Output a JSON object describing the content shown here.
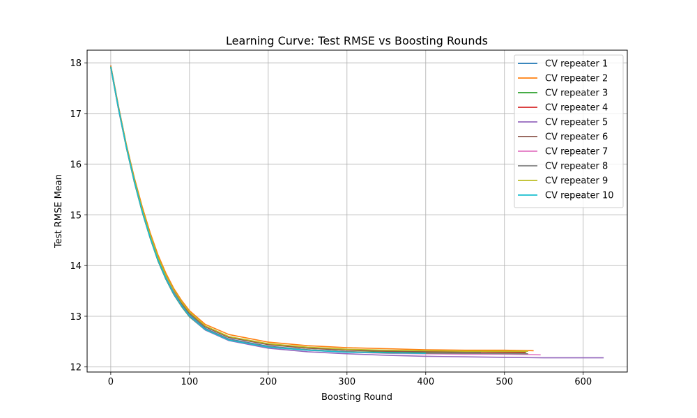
{
  "chart_data": {
    "type": "line",
    "title": "Learning Curve: Test RMSE vs Boosting Rounds",
    "xlabel": "Boosting Round",
    "ylabel": "Test RMSE Mean",
    "xlim": [
      -30,
      656
    ],
    "ylim": [
      11.9,
      18.25
    ],
    "xticks": [
      0,
      100,
      200,
      300,
      400,
      500,
      600
    ],
    "yticks": [
      12,
      13,
      14,
      15,
      16,
      17,
      18
    ],
    "grid": true,
    "legend_position": "top-right",
    "series": [
      {
        "name": "CV repeater 1",
        "color": "#1f77b4",
        "end_round": 480,
        "values": [
          [
            0,
            17.93
          ],
          [
            10,
            17.1
          ],
          [
            20,
            16.35
          ],
          [
            30,
            15.69
          ],
          [
            40,
            15.1
          ],
          [
            50,
            14.59
          ],
          [
            60,
            14.14
          ],
          [
            70,
            13.78
          ],
          [
            80,
            13.48
          ],
          [
            90,
            13.23
          ],
          [
            100,
            13.03
          ],
          [
            120,
            12.76
          ],
          [
            150,
            12.55
          ],
          [
            200,
            12.41
          ],
          [
            250,
            12.34
          ],
          [
            300,
            12.3
          ],
          [
            350,
            12.28
          ],
          [
            400,
            12.27
          ],
          [
            480,
            12.26
          ]
        ]
      },
      {
        "name": "CV repeater 2",
        "color": "#ff7f0e",
        "end_round": 537,
        "values": [
          [
            0,
            17.95
          ],
          [
            10,
            17.13
          ],
          [
            20,
            16.38
          ],
          [
            30,
            15.73
          ],
          [
            40,
            15.16
          ],
          [
            50,
            14.65
          ],
          [
            60,
            14.21
          ],
          [
            70,
            13.85
          ],
          [
            80,
            13.55
          ],
          [
            90,
            13.31
          ],
          [
            100,
            13.11
          ],
          [
            120,
            12.84
          ],
          [
            150,
            12.64
          ],
          [
            200,
            12.49
          ],
          [
            250,
            12.42
          ],
          [
            300,
            12.38
          ],
          [
            350,
            12.36
          ],
          [
            400,
            12.34
          ],
          [
            450,
            12.33
          ],
          [
            500,
            12.33
          ],
          [
            537,
            12.32
          ]
        ]
      },
      {
        "name": "CV repeater 3",
        "color": "#2ca02c",
        "end_round": 528,
        "values": [
          [
            0,
            17.9
          ],
          [
            10,
            17.07
          ],
          [
            20,
            16.31
          ],
          [
            30,
            15.64
          ],
          [
            40,
            15.05
          ],
          [
            50,
            14.54
          ],
          [
            60,
            14.09
          ],
          [
            70,
            13.73
          ],
          [
            80,
            13.43
          ],
          [
            90,
            13.19
          ],
          [
            100,
            12.99
          ],
          [
            120,
            12.73
          ],
          [
            150,
            12.53
          ],
          [
            200,
            12.4
          ],
          [
            250,
            12.34
          ],
          [
            300,
            12.3
          ],
          [
            350,
            12.29
          ],
          [
            400,
            12.28
          ],
          [
            450,
            12.27
          ],
          [
            528,
            12.27
          ]
        ]
      },
      {
        "name": "CV repeater 4",
        "color": "#d62728",
        "end_round": 527,
        "values": [
          [
            0,
            17.92
          ],
          [
            10,
            17.1
          ],
          [
            20,
            16.34
          ],
          [
            30,
            15.68
          ],
          [
            40,
            15.1
          ],
          [
            50,
            14.59
          ],
          [
            60,
            14.15
          ],
          [
            70,
            13.8
          ],
          [
            80,
            13.51
          ],
          [
            90,
            13.27
          ],
          [
            100,
            13.07
          ],
          [
            120,
            12.8
          ],
          [
            150,
            12.59
          ],
          [
            200,
            12.45
          ],
          [
            250,
            12.38
          ],
          [
            300,
            12.34
          ],
          [
            350,
            12.32
          ],
          [
            400,
            12.31
          ],
          [
            450,
            12.3
          ],
          [
            527,
            12.29
          ]
        ]
      },
      {
        "name": "CV repeater 5",
        "color": "#9467bd",
        "end_round": 626,
        "values": [
          [
            0,
            17.91
          ],
          [
            10,
            17.07
          ],
          [
            20,
            16.32
          ],
          [
            30,
            15.65
          ],
          [
            40,
            15.06
          ],
          [
            50,
            14.55
          ],
          [
            60,
            14.1
          ],
          [
            70,
            13.74
          ],
          [
            80,
            13.44
          ],
          [
            90,
            13.2
          ],
          [
            100,
            13.0
          ],
          [
            120,
            12.73
          ],
          [
            150,
            12.52
          ],
          [
            200,
            12.37
          ],
          [
            250,
            12.3
          ],
          [
            300,
            12.26
          ],
          [
            350,
            12.23
          ],
          [
            400,
            12.21
          ],
          [
            450,
            12.2
          ],
          [
            500,
            12.19
          ],
          [
            550,
            12.18
          ],
          [
            600,
            12.18
          ],
          [
            626,
            12.18
          ]
        ]
      },
      {
        "name": "CV repeater 6",
        "color": "#8c564b",
        "end_round": 470,
        "values": [
          [
            0,
            17.94
          ],
          [
            10,
            17.12
          ],
          [
            20,
            16.36
          ],
          [
            30,
            15.7
          ],
          [
            40,
            15.11
          ],
          [
            50,
            14.6
          ],
          [
            60,
            14.16
          ],
          [
            70,
            13.8
          ],
          [
            80,
            13.5
          ],
          [
            90,
            13.26
          ],
          [
            100,
            13.06
          ],
          [
            120,
            12.79
          ],
          [
            150,
            12.58
          ],
          [
            200,
            12.44
          ],
          [
            250,
            12.37
          ],
          [
            300,
            12.33
          ],
          [
            350,
            12.31
          ],
          [
            400,
            12.3
          ],
          [
            470,
            12.29
          ]
        ]
      },
      {
        "name": "CV repeater 7",
        "color": "#e377c2",
        "end_round": 546,
        "values": [
          [
            0,
            17.93
          ],
          [
            10,
            17.1
          ],
          [
            20,
            16.35
          ],
          [
            30,
            15.68
          ],
          [
            40,
            15.09
          ],
          [
            50,
            14.58
          ],
          [
            60,
            14.13
          ],
          [
            70,
            13.77
          ],
          [
            80,
            13.47
          ],
          [
            90,
            13.22
          ],
          [
            100,
            13.02
          ],
          [
            120,
            12.75
          ],
          [
            150,
            12.54
          ],
          [
            200,
            12.4
          ],
          [
            250,
            12.33
          ],
          [
            300,
            12.29
          ],
          [
            350,
            12.27
          ],
          [
            400,
            12.26
          ],
          [
            450,
            12.25
          ],
          [
            500,
            12.25
          ],
          [
            546,
            12.24
          ]
        ]
      },
      {
        "name": "CV repeater 8",
        "color": "#7f7f7f",
        "end_round": 530,
        "values": [
          [
            0,
            17.92
          ],
          [
            10,
            17.09
          ],
          [
            20,
            16.33
          ],
          [
            30,
            15.67
          ],
          [
            40,
            15.08
          ],
          [
            50,
            14.57
          ],
          [
            60,
            14.12
          ],
          [
            70,
            13.76
          ],
          [
            80,
            13.46
          ],
          [
            90,
            13.22
          ],
          [
            100,
            13.02
          ],
          [
            120,
            12.75
          ],
          [
            150,
            12.54
          ],
          [
            200,
            12.4
          ],
          [
            250,
            12.34
          ],
          [
            300,
            12.3
          ],
          [
            350,
            12.28
          ],
          [
            400,
            12.27
          ],
          [
            450,
            12.27
          ],
          [
            530,
            12.26
          ]
        ]
      },
      {
        "name": "CV repeater 9",
        "color": "#bcbd22",
        "end_round": 530,
        "values": [
          [
            0,
            17.93
          ],
          [
            10,
            17.11
          ],
          [
            20,
            16.36
          ],
          [
            30,
            15.7
          ],
          [
            40,
            15.12
          ],
          [
            50,
            14.61
          ],
          [
            60,
            14.17
          ],
          [
            70,
            13.81
          ],
          [
            80,
            13.52
          ],
          [
            90,
            13.28
          ],
          [
            100,
            13.08
          ],
          [
            120,
            12.81
          ],
          [
            150,
            12.6
          ],
          [
            200,
            12.46
          ],
          [
            250,
            12.39
          ],
          [
            300,
            12.35
          ],
          [
            350,
            12.33
          ],
          [
            400,
            12.32
          ],
          [
            450,
            12.31
          ],
          [
            530,
            12.31
          ]
        ]
      },
      {
        "name": "CV repeater 10",
        "color": "#17becf",
        "end_round": 400,
        "values": [
          [
            0,
            17.92
          ],
          [
            10,
            17.09
          ],
          [
            20,
            16.33
          ],
          [
            30,
            15.66
          ],
          [
            40,
            15.07
          ],
          [
            50,
            14.56
          ],
          [
            60,
            14.11
          ],
          [
            70,
            13.75
          ],
          [
            80,
            13.45
          ],
          [
            90,
            13.21
          ],
          [
            100,
            13.01
          ],
          [
            120,
            12.74
          ],
          [
            150,
            12.53
          ],
          [
            200,
            12.39
          ],
          [
            250,
            12.33
          ],
          [
            300,
            12.29
          ],
          [
            350,
            12.28
          ],
          [
            400,
            12.27
          ]
        ]
      }
    ]
  }
}
